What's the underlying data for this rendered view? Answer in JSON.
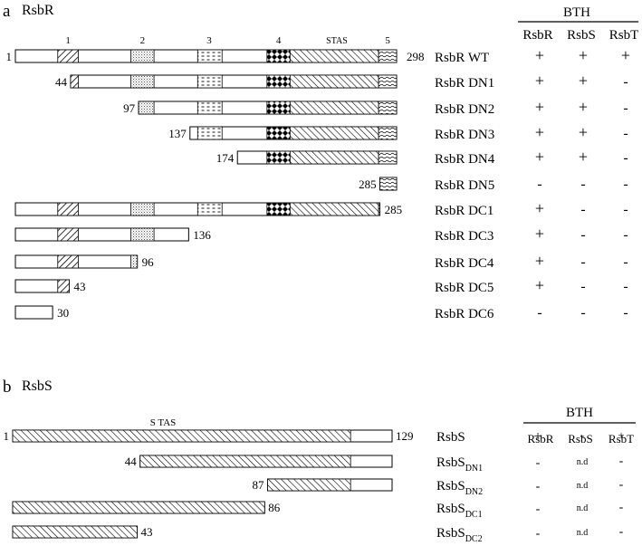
{
  "panel_a": {
    "letter": "a",
    "title": "RsbR",
    "domain_numbers": [
      "1",
      "2",
      "3",
      "4",
      "5"
    ],
    "stas_label": "STAS",
    "bth_header": "BTH",
    "columns": [
      "RsbR",
      "RsbS",
      "RsbT"
    ],
    "constructs": [
      {
        "name": "RsbR WT",
        "start": 1,
        "end": 298,
        "results": [
          "+",
          "+",
          "+"
        ]
      },
      {
        "name": "RsbR DN1",
        "start": 44,
        "end": 298,
        "results": [
          "+",
          "+",
          "-"
        ]
      },
      {
        "name": "RsbR DN2",
        "start": 97,
        "end": 298,
        "results": [
          "+",
          "+",
          "-"
        ]
      },
      {
        "name": "RsbR DN3",
        "start": 137,
        "end": 298,
        "results": [
          "+",
          "+",
          "-"
        ]
      },
      {
        "name": "RsbR DN4",
        "start": 174,
        "end": 298,
        "results": [
          "+",
          "+",
          "-"
        ]
      },
      {
        "name": "RsbR DN5",
        "start": 285,
        "end": 298,
        "results": [
          "-",
          "-",
          "-"
        ]
      },
      {
        "name": "RsbR DC1",
        "start": 1,
        "end": 285,
        "results": [
          "+",
          "-",
          "-"
        ]
      },
      {
        "name": "RsbR DC3",
        "start": 1,
        "end": 136,
        "results": [
          "+",
          "-",
          "-"
        ]
      },
      {
        "name": "RsbR DC4",
        "start": 1,
        "end": 96,
        "results": [
          "+",
          "-",
          "-"
        ]
      },
      {
        "name": "RsbR DC5",
        "start": 1,
        "end": 43,
        "results": [
          "+",
          "-",
          "-"
        ]
      },
      {
        "name": "RsbR DC6",
        "start": 1,
        "end": 30,
        "results": [
          "-",
          "-",
          "-"
        ]
      }
    ]
  },
  "panel_b": {
    "letter": "b",
    "title": "RsbS",
    "stas_label": "S TAS",
    "bth_header": "BTH",
    "columns": [
      "RsbR",
      "RsbS",
      "RsbT"
    ],
    "constructs": [
      {
        "name": "RsbS",
        "sub": "",
        "start": 1,
        "end": 129,
        "results": [
          "+",
          "-",
          "+"
        ]
      },
      {
        "name": "RsbS",
        "sub": "DN1",
        "start": 44,
        "end": 129,
        "results": [
          "-",
          "n.d",
          "-"
        ]
      },
      {
        "name": "RsbS",
        "sub": "DN2",
        "start": 87,
        "end": 129,
        "results": [
          "-",
          "n.d",
          "-"
        ]
      },
      {
        "name": "RsbS",
        "sub": "DC1",
        "start": 1,
        "end": 86,
        "results": [
          "-",
          "n.d",
          "-"
        ]
      },
      {
        "name": "RsbS",
        "sub": "DC2",
        "start": 1,
        "end": 43,
        "results": [
          "-",
          "n.d",
          "-"
        ]
      }
    ]
  }
}
